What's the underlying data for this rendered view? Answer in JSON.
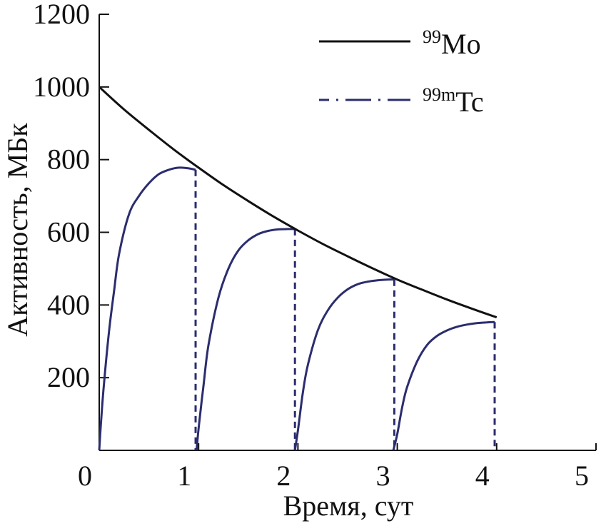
{
  "chart_data": {
    "type": "line",
    "title": "",
    "xlabel": "Время, сут",
    "ylabel": "Активность, МБк",
    "xlim": [
      0,
      5
    ],
    "ylim": [
      0,
      1200
    ],
    "xticks": [
      0,
      1,
      2,
      3,
      4,
      5
    ],
    "xtick_labels": [
      "0",
      "1",
      "2",
      "3",
      "4",
      "5"
    ],
    "yticks": [
      200,
      400,
      600,
      800,
      1000,
      1200
    ],
    "ytick_labels": [
      "200",
      "400",
      "600",
      "800",
      "1000",
      "1200"
    ],
    "grid": false,
    "legend_position": "top-right",
    "series": [
      {
        "name": "99Mo",
        "style": "solid",
        "color": "#111111",
        "x": [
          0,
          0.25,
          0.5,
          0.75,
          1.0,
          1.25,
          1.5,
          1.75,
          2.0,
          2.25,
          2.5,
          2.75,
          3.0,
          3.25,
          3.5,
          3.75,
          4.0
        ],
        "y": [
          1000,
          938,
          882,
          828,
          778,
          730,
          686,
          644,
          605,
          568,
          534,
          501,
          470,
          442,
          415,
          390,
          366
        ]
      },
      {
        "name": "99mTc",
        "style": "dashed",
        "color": "#2b2d6e",
        "segments": [
          {
            "x": [
              0,
              0.02,
              0.05,
              0.1,
              0.15,
              0.2,
              0.3,
              0.4,
              0.5,
              0.6,
              0.7,
              0.8,
              0.9,
              0.97
            ],
            "y": [
              0,
              85,
              190,
              330,
              440,
              540,
              650,
              700,
              735,
              760,
              772,
              778,
              776,
              772
            ]
          },
          {
            "x": [
              0.98,
              1.0,
              1.05,
              1.1,
              1.2,
              1.3,
              1.4,
              1.5,
              1.6,
              1.7,
              1.8,
              1.9,
              1.97
            ],
            "y": [
              0,
              60,
              180,
              290,
              420,
              500,
              550,
              578,
              595,
              604,
              608,
              609,
              609
            ]
          },
          {
            "x": [
              1.97,
              2.0,
              2.05,
              2.1,
              2.2,
              2.3,
              2.4,
              2.5,
              2.6,
              2.7,
              2.8,
              2.9,
              2.97
            ],
            "y": [
              0,
              55,
              160,
              235,
              330,
              385,
              420,
              443,
              457,
              464,
              468,
              470,
              470
            ]
          },
          {
            "x": [
              2.96,
              3.0,
              3.05,
              3.1,
              3.2,
              3.3,
              3.4,
              3.5,
              3.6,
              3.7,
              3.8,
              3.9,
              3.98
            ],
            "y": [
              0,
              45,
              120,
              175,
              245,
              290,
              315,
              330,
              340,
              346,
              350,
              352,
              353
            ]
          }
        ],
        "drops": [
          {
            "x": 0.97,
            "from": 772,
            "to": 0
          },
          {
            "x": 1.97,
            "from": 609,
            "to": 0
          },
          {
            "x": 2.97,
            "from": 470,
            "to": 0
          },
          {
            "x": 3.98,
            "from": 353,
            "to": 0
          }
        ]
      }
    ]
  },
  "legend": {
    "mo_sup": "99",
    "mo_label": "Mo",
    "tc_sup": "99m",
    "tc_label": "Tc"
  }
}
